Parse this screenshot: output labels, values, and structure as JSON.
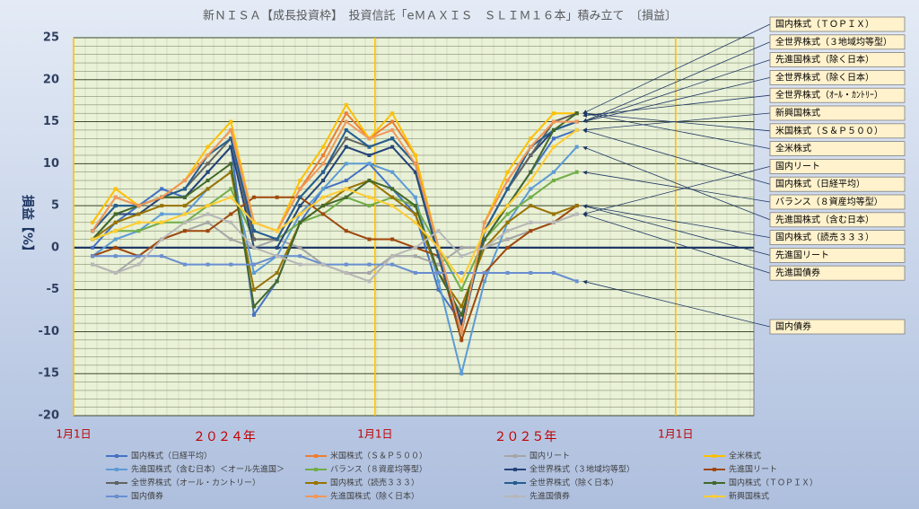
{
  "chart_data": {
    "type": "line",
    "title": "新ＮＩＳＡ【成長投資枠】　投資信託「eＭＡＸＩＳ　ＳＬＩＭ１６本」積み立て　〔損益〕",
    "y_label": "損益【%】",
    "x": [
      23,
      51,
      79,
      107,
      135,
      163,
      191,
      219,
      247,
      275,
      303,
      331,
      359,
      387,
      415,
      443,
      471,
      499,
      527,
      555,
      583,
      611
    ],
    "xlim": [
      0,
      826
    ],
    "xticks": [
      {
        "value": 0,
        "label": "1月1日"
      },
      {
        "value": 366,
        "label": "1月1日"
      },
      {
        "value": 731,
        "label": "1月1日"
      }
    ],
    "x_year_labels": [
      "２０２４年",
      "２０２５年"
    ],
    "ylim": [
      -20,
      25
    ],
    "yticks": [
      -20,
      -15,
      -10,
      -5,
      0,
      5,
      10,
      15,
      20,
      25
    ],
    "grid": true,
    "minor_grid": true,
    "series": [
      {
        "name": "国内株式（日経平均）",
        "color": "#4472c4",
        "values": [
          0,
          3,
          5,
          7,
          6,
          9,
          12,
          -8,
          -4,
          3,
          7,
          8,
          10,
          7,
          4,
          -5,
          -9,
          1,
          5,
          9,
          13,
          14
        ]
      },
      {
        "name": "米国株式（Ｓ＆Ｐ５００）",
        "color": "#ed7d31",
        "values": [
          2,
          6,
          5,
          6,
          8,
          11,
          14,
          3,
          2,
          7,
          11,
          16,
          13,
          15,
          11,
          0,
          -10,
          3,
          8,
          12,
          15,
          16
        ]
      },
      {
        "name": "国内リート",
        "color": "#a5a5a5",
        "values": [
          -2,
          -3,
          -1,
          1,
          2,
          3,
          1,
          0,
          1,
          0,
          -2,
          -3,
          -3,
          -1,
          -1,
          -2,
          0,
          0,
          1,
          2,
          3,
          4
        ]
      },
      {
        "name": "全米株式",
        "color": "#ffc000",
        "values": [
          3,
          7,
          5,
          6,
          8,
          12,
          15,
          3,
          2,
          8,
          12,
          17,
          13,
          16,
          11,
          0,
          -10,
          3,
          9,
          13,
          16,
          16
        ]
      },
      {
        "name": "先進国株式（含む日本）＜オール先進国＞",
        "color": "#5b9bd5",
        "values": [
          -1,
          1,
          2,
          4,
          4,
          7,
          9,
          -3,
          -1,
          4,
          7,
          10,
          10,
          9,
          6,
          -4,
          -15,
          -4,
          3,
          7,
          9,
          12
        ]
      },
      {
        "name": "バランス（８資産均等型）",
        "color": "#70ad47",
        "values": [
          1,
          2,
          2,
          3,
          3,
          5,
          7,
          1,
          1,
          3,
          4,
          6,
          5,
          6,
          5,
          0,
          -5,
          1,
          4,
          6,
          8,
          9
        ]
      },
      {
        "name": "全世界株式（３地域均等型）",
        "color": "#264478",
        "values": [
          1,
          4,
          4,
          6,
          6,
          9,
          12,
          0,
          0,
          5,
          8,
          12,
          11,
          12,
          9,
          -1,
          -9,
          2,
          7,
          11,
          14,
          15
        ]
      },
      {
        "name": "先進国リート",
        "color": "#9e480e",
        "values": [
          -1,
          0,
          -1,
          1,
          2,
          2,
          4,
          6,
          6,
          6,
          4,
          2,
          1,
          1,
          0,
          -1,
          -11,
          -3,
          0,
          2,
          3,
          5
        ]
      },
      {
        "name": "全世界株式（オール・カントリー）",
        "color": "#636363",
        "values": [
          2,
          5,
          5,
          6,
          7,
          10,
          13,
          1,
          1,
          6,
          9,
          13,
          12,
          13,
          10,
          0,
          -10,
          2,
          7,
          11,
          15,
          16
        ]
      },
      {
        "name": "国内株式（読売３３３）",
        "color": "#997300",
        "values": [
          1,
          3,
          4,
          5,
          5,
          7,
          9,
          -5,
          -3,
          3,
          5,
          7,
          8,
          6,
          4,
          -3,
          -7,
          0,
          3,
          5,
          4,
          5
        ]
      },
      {
        "name": "全世界株式（除く日本）",
        "color": "#255e91",
        "values": [
          2,
          5,
          5,
          6,
          7,
          11,
          13,
          2,
          1,
          6,
          9,
          14,
          12,
          13,
          10,
          -1,
          -10,
          2,
          7,
          12,
          14,
          15
        ]
      },
      {
        "name": "国内株式（ＴＯＰＩＸ）",
        "color": "#43682b",
        "values": [
          1,
          4,
          5,
          6,
          6,
          8,
          10,
          -7,
          -4,
          3,
          5,
          6,
          8,
          7,
          5,
          -3,
          -8,
          1,
          5,
          9,
          14,
          16
        ]
      },
      {
        "name": "国内債券",
        "color": "#698ed0",
        "values": [
          -1,
          -1,
          -1,
          -1,
          -2,
          -2,
          -2,
          -2,
          -1,
          -1,
          -2,
          -2,
          -2,
          -2,
          -3,
          -3,
          -3,
          -3,
          -3,
          -3,
          -3,
          -4
        ]
      },
      {
        "name": "先進国株式（除く日本）",
        "color": "#f1975a",
        "values": [
          2,
          6,
          5,
          6,
          8,
          11,
          14,
          3,
          2,
          7,
          10,
          15,
          13,
          14,
          10,
          0,
          -10,
          3,
          8,
          12,
          15,
          15
        ]
      },
      {
        "name": "先進国債券",
        "color": "#b7b7b7",
        "values": [
          -2,
          -3,
          -2,
          1,
          3,
          4,
          3,
          0,
          -1,
          -2,
          -2,
          -3,
          -4,
          -1,
          0,
          2,
          -1,
          0,
          2,
          3,
          3,
          4
        ]
      },
      {
        "name": "新興国株式",
        "color": "#ffcd33",
        "values": [
          1,
          2,
          3,
          3,
          4,
          5,
          6,
          3,
          2,
          4,
          6,
          7,
          6,
          5,
          3,
          0,
          -4,
          2,
          5,
          8,
          12,
          14
        ]
      }
    ],
    "callouts": [
      "国内株式（ＴＯＰＩＸ）",
      "全世界株式（３地域均等型）",
      "先進国株式（除く日本）",
      "全世界株式（除く日本）",
      "全世界株式（ｵｰﾙ・ｶﾝﾄﾘｰ）",
      "新興国株式",
      "米国株式（Ｓ＆Ｐ５００）",
      "全米株式",
      "国内リート",
      "国内株式（日経平均）",
      "バランス（８資産均等型）",
      "先進国株式（含む日本）",
      "国内株式（読売３３３）",
      "先進国リート",
      "先進国債券",
      "国内債券"
    ]
  }
}
